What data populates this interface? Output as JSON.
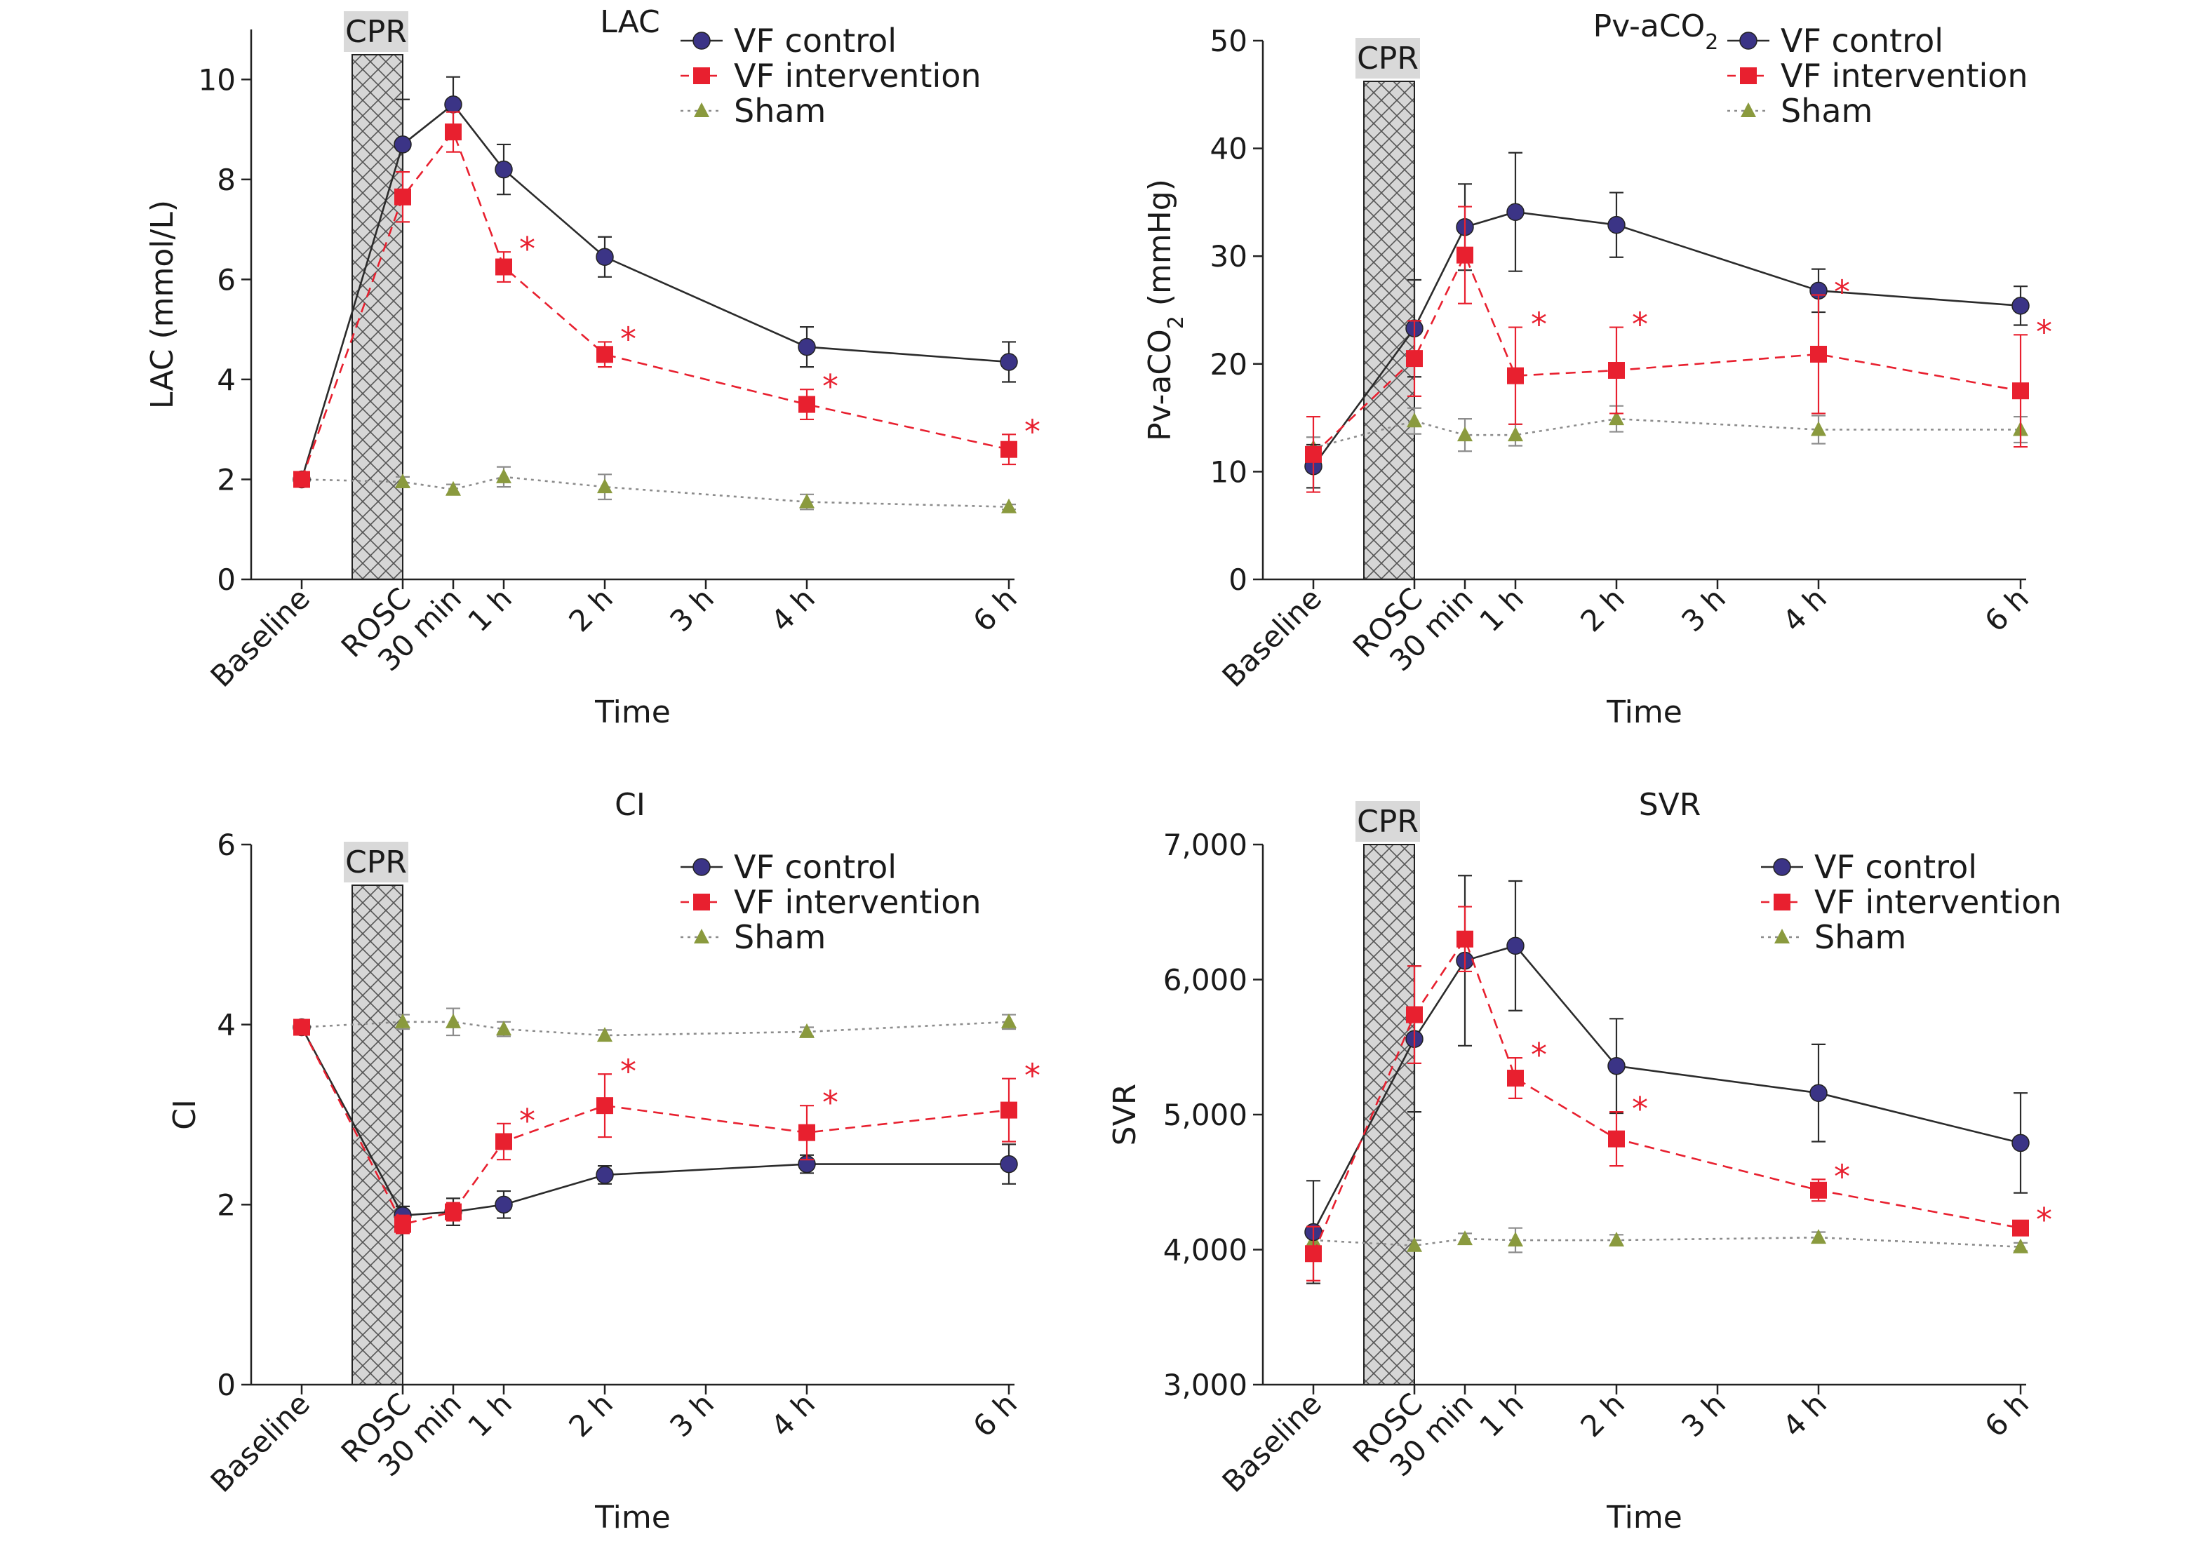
{
  "figure": {
    "x_categories": [
      "Baseline",
      "ROSC",
      "30 min",
      "1 h",
      "2 h",
      "3 h",
      "4 h",
      "6 h"
    ],
    "x_positions_hours": [
      -1,
      0,
      0.5,
      1,
      2,
      3,
      4,
      6
    ],
    "cpr_label": "CPR",
    "significance_mark": "*",
    "series_styles": {
      "VF control": {
        "color": "#3b3486",
        "line": "#2b2b2b",
        "dash": "solid",
        "marker": "circle"
      },
      "VF intervention": {
        "color": "#e8202f",
        "line": "#e8202f",
        "dash": "dashed",
        "marker": "square"
      },
      "Sham": {
        "color": "#8a9a3e",
        "line": "#8c8c8c",
        "dash": "dotted",
        "marker": "triangle"
      }
    }
  },
  "chart_data": [
    {
      "type": "line",
      "title": "LAC",
      "xlabel": "Time",
      "ylabel": "LAC (mmol/L)",
      "ylim": [
        0,
        11
      ],
      "yticks": [
        0,
        2,
        4,
        6,
        8,
        10
      ],
      "ytick_labels": [
        "0",
        "2",
        "4",
        "6",
        "8",
        "10"
      ],
      "legend_position": "top-right",
      "series": [
        {
          "name": "VF control",
          "x": [
            -1,
            0,
            0.5,
            1,
            2,
            4,
            6
          ],
          "y": [
            2.0,
            8.7,
            9.5,
            8.2,
            6.45,
            4.65,
            4.35
          ],
          "err": [
            0.1,
            0.9,
            0.55,
            0.5,
            0.4,
            0.4,
            0.4
          ],
          "significant": [
            false,
            false,
            false,
            false,
            false,
            false,
            false
          ]
        },
        {
          "name": "VF intervention",
          "x": [
            -1,
            0,
            0.5,
            1,
            2,
            4,
            6
          ],
          "y": [
            2.0,
            7.65,
            8.95,
            6.25,
            4.5,
            3.5,
            2.6
          ],
          "err": [
            0.1,
            0.5,
            0.4,
            0.3,
            0.25,
            0.3,
            0.3
          ],
          "significant": [
            false,
            false,
            false,
            true,
            true,
            true,
            true
          ]
        },
        {
          "name": "Sham",
          "x": [
            -1,
            0,
            0.5,
            1,
            2,
            4,
            6
          ],
          "y": [
            2.0,
            1.95,
            1.8,
            2.05,
            1.85,
            1.55,
            1.45
          ],
          "err": [
            0.1,
            0.1,
            0.1,
            0.2,
            0.25,
            0.15,
            0.05
          ],
          "significant": [
            false,
            false,
            false,
            false,
            false,
            false,
            false
          ]
        }
      ]
    },
    {
      "type": "line",
      "title": "Pv-aCO",
      "title_subscript": "2",
      "xlabel": "Time",
      "ylabel": "Pv-aCO",
      "ylabel_subscript": "2",
      "ylabel_suffix": " (mmHg)",
      "ylim": [
        0,
        50
      ],
      "yticks": [
        0,
        10,
        20,
        30,
        40,
        50
      ],
      "ytick_labels": [
        "0",
        "10",
        "20",
        "30",
        "40",
        "50"
      ],
      "legend_position": "top-right",
      "series": [
        {
          "name": "VF control",
          "x": [
            -1,
            0,
            0.5,
            1,
            2,
            4,
            6
          ],
          "y": [
            10.5,
            23.3,
            32.7,
            34.1,
            32.9,
            26.8,
            25.4
          ],
          "err": [
            2.0,
            4.5,
            4.0,
            5.5,
            3.0,
            2.0,
            1.8
          ],
          "significant": [
            false,
            false,
            false,
            false,
            false,
            false,
            false
          ]
        },
        {
          "name": "VF intervention",
          "x": [
            -1,
            0,
            0.5,
            1,
            2,
            4,
            6
          ],
          "y": [
            11.6,
            20.5,
            30.1,
            18.9,
            19.4,
            20.9,
            17.5
          ],
          "err": [
            3.5,
            3.5,
            4.5,
            4.5,
            4.0,
            5.5,
            5.2
          ],
          "significant": [
            false,
            false,
            false,
            true,
            true,
            true,
            true
          ]
        },
        {
          "name": "Sham",
          "x": [
            -1,
            0,
            0.5,
            1,
            2,
            4,
            6
          ],
          "y": [
            12.2,
            14.7,
            13.4,
            13.4,
            14.9,
            13.9,
            13.9
          ],
          "err": [
            1.0,
            1.2,
            1.5,
            1.0,
            1.2,
            1.3,
            1.2
          ],
          "significant": [
            false,
            false,
            false,
            false,
            false,
            false,
            false
          ]
        }
      ]
    },
    {
      "type": "line",
      "title": "CI",
      "xlabel": "Time",
      "ylabel": "CI",
      "ylim": [
        0,
        6
      ],
      "yticks": [
        0,
        2,
        4,
        6
      ],
      "ytick_labels": [
        "0",
        "2",
        "4",
        "6"
      ],
      "legend_position": "top-right",
      "series": [
        {
          "name": "VF control",
          "x": [
            -1,
            0,
            0.5,
            1,
            2,
            4,
            6
          ],
          "y": [
            3.97,
            1.88,
            1.92,
            2.0,
            2.33,
            2.45,
            2.45
          ],
          "err": [
            0.05,
            0.1,
            0.15,
            0.15,
            0.1,
            0.1,
            0.22
          ],
          "significant": [
            false,
            false,
            false,
            false,
            false,
            false,
            false
          ]
        },
        {
          "name": "VF intervention",
          "x": [
            -1,
            0,
            0.5,
            1,
            2,
            4,
            6
          ],
          "y": [
            3.97,
            1.78,
            1.92,
            2.7,
            3.1,
            2.8,
            3.05
          ],
          "err": [
            0.05,
            0.1,
            0.1,
            0.2,
            0.35,
            0.3,
            0.35
          ],
          "significant": [
            false,
            false,
            false,
            true,
            true,
            true,
            true
          ]
        },
        {
          "name": "Sham",
          "x": [
            -1,
            0,
            0.5,
            1,
            2,
            4,
            6
          ],
          "y": [
            3.97,
            4.03,
            4.03,
            3.95,
            3.88,
            3.92,
            4.03
          ],
          "err": [
            0.05,
            0.08,
            0.15,
            0.08,
            0.06,
            0.05,
            0.08
          ],
          "significant": [
            false,
            false,
            false,
            false,
            false,
            false,
            false
          ]
        }
      ]
    },
    {
      "type": "line",
      "title": "SVR",
      "xlabel": "Time",
      "ylabel": "SVR",
      "ylim": [
        3000,
        7000
      ],
      "yticks": [
        3000,
        4000,
        5000,
        6000,
        7000
      ],
      "ytick_labels": [
        "3,000",
        "4,000",
        "5,000",
        "6,000",
        "7,000"
      ],
      "legend_position": "top-right",
      "series": [
        {
          "name": "VF control",
          "x": [
            -1,
            0,
            0.5,
            1,
            2,
            4,
            6
          ],
          "y": [
            4130,
            5560,
            6140,
            6250,
            5360,
            5160,
            4790
          ],
          "err": [
            380,
            540,
            630,
            480,
            350,
            360,
            370
          ],
          "significant": [
            false,
            false,
            false,
            false,
            false,
            false,
            false
          ]
        },
        {
          "name": "VF intervention",
          "x": [
            -1,
            0,
            0.5,
            1,
            2,
            4,
            6
          ],
          "y": [
            3970,
            5740,
            6300,
            5270,
            4820,
            4440,
            4160
          ],
          "err": [
            200,
            360,
            240,
            150,
            200,
            80,
            40
          ],
          "significant": [
            false,
            false,
            false,
            true,
            true,
            true,
            true
          ]
        },
        {
          "name": "Sham",
          "x": [
            -1,
            0,
            0.5,
            1,
            2,
            4,
            6
          ],
          "y": [
            4070,
            4030,
            4080,
            4070,
            4070,
            4090,
            4020
          ],
          "err": [
            60,
            40,
            40,
            90,
            40,
            40,
            30
          ],
          "significant": [
            false,
            false,
            false,
            false,
            false,
            false,
            false
          ]
        }
      ]
    }
  ]
}
